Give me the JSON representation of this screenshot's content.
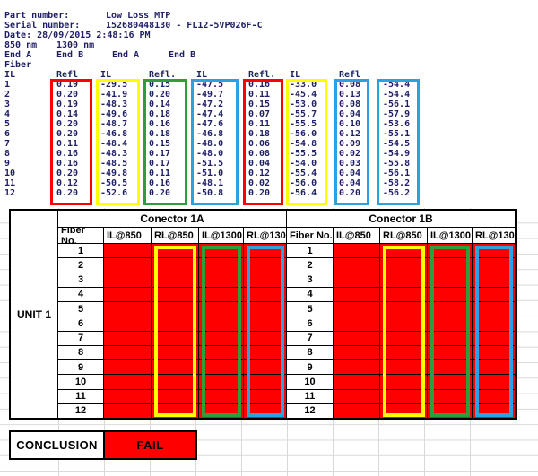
{
  "colors": {
    "red": "#ff0000",
    "yellow": "#ffff00",
    "green": "#2e9e3c",
    "blue": "#29a3e0",
    "report_text": "#1f1f66",
    "fail_fill": "#ff0000"
  },
  "report": {
    "part_label": "Part number:",
    "part_value": "Low Loss MTP",
    "serial_label": "Serial number:",
    "serial_value": "152680448130 - FL12-5VP026F-C",
    "date_line": "Date: 28/09/2015 2:48:16 PM",
    "wavelengths": [
      "850 nm",
      "1300 nm"
    ],
    "end_labels": [
      "End A",
      "End B",
      "End A",
      "End B"
    ],
    "fiber_label": "Fiber",
    "column_headers": [
      "IL",
      "Refl",
      "IL",
      "Refl.",
      "IL",
      "Refl.",
      "IL",
      "Refl"
    ],
    "fibers": [
      "1",
      "2",
      "3",
      "4",
      "5",
      "6",
      "7",
      "8",
      "9",
      "10",
      "11",
      "12"
    ],
    "rows": [
      [
        "0.19",
        "-29.5",
        "0.15",
        "-47.5",
        "0.16",
        "-33.0",
        "0.08",
        "-54.4"
      ],
      [
        "0.20",
        "-41.9",
        "0.20",
        "-49.7",
        "0.11",
        "-45.4",
        "0.13",
        "-54.4"
      ],
      [
        "0.19",
        "-48.3",
        "0.14",
        "-47.2",
        "0.15",
        "-53.0",
        "0.08",
        "-56.1"
      ],
      [
        "0.14",
        "-49.6",
        "0.18",
        "-47.4",
        "0.07",
        "-55.7",
        "0.04",
        "-57.9"
      ],
      [
        "0.20",
        "-48.7",
        "0.16",
        "-47.6",
        "0.11",
        "-55.5",
        "0.10",
        "-53.6"
      ],
      [
        "0.20",
        "-46.8",
        "0.18",
        "-46.8",
        "0.18",
        "-56.0",
        "0.12",
        "-55.1"
      ],
      [
        "0.11",
        "-48.4",
        "0.15",
        "-48.0",
        "0.06",
        "-54.8",
        "0.09",
        "-54.5"
      ],
      [
        "0.16",
        "-48.3",
        "0.17",
        "-48.0",
        "0.08",
        "-55.5",
        "0.02",
        "-54.9"
      ],
      [
        "0.16",
        "-48.5",
        "0.17",
        "-51.5",
        "0.04",
        "-54.0",
        "0.03",
        "-55.8"
      ],
      [
        "0.20",
        "-49.8",
        "0.11",
        "-51.0",
        "0.12",
        "-55.4",
        "0.04",
        "-56.1"
      ],
      [
        "0.12",
        "-50.5",
        "0.16",
        "-48.1",
        "0.02",
        "-56.0",
        "0.04",
        "-58.2"
      ],
      [
        "0.20",
        "-52.6",
        "0.20",
        "-50.8",
        "0.20",
        "-56.4",
        "0.20",
        "-56.2"
      ]
    ],
    "box_colors": [
      "#ff0000",
      "#ffff00",
      "#2e9e3c",
      "#29a3e0",
      "#ff0000",
      "#ffff00",
      "#29a3e0",
      "#29a3e0"
    ]
  },
  "results_table": {
    "unit_label": "UNIT 1",
    "connector_headers": [
      "Conector 1A",
      "Conector 1B"
    ],
    "column_headers": [
      "Fiber No.",
      "IL@850",
      "RL@850",
      "IL@1300",
      "RL@1300"
    ],
    "fiber_numbers": [
      "1",
      "2",
      "3",
      "4",
      "5",
      "6",
      "7",
      "8",
      "9",
      "10",
      "11",
      "12"
    ],
    "cell_fill": "#ff0000",
    "outline_colors": {
      "rl850": "#ffff00",
      "il1300": "#2e9e3c",
      "rl1300": "#29a3e0"
    }
  },
  "conclusion": {
    "label": "CONCLUSION",
    "value": "FAIL"
  }
}
